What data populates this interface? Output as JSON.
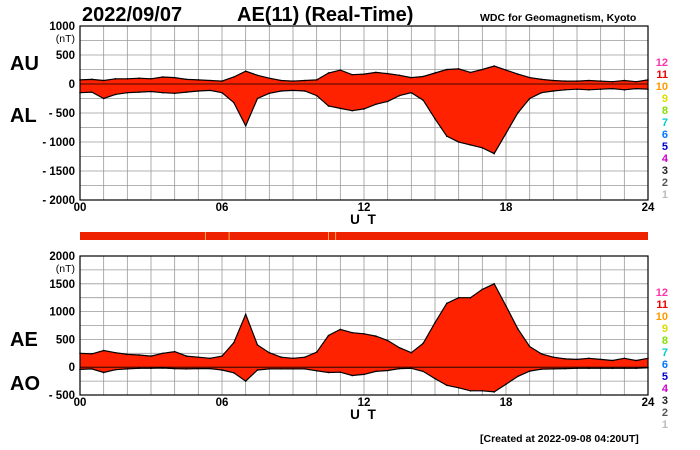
{
  "header": {
    "date": "2022/09/07",
    "title": "AE(11) (Real-Time)",
    "source": "WDC for Geomagnetism, Kyoto"
  },
  "footer": {
    "created": "[Created at 2022-09-08 04:20UT]"
  },
  "colors": {
    "fill": "#ff2200",
    "outline": "#000000",
    "grid": "#9a9a9a",
    "bar": "#ee2200"
  },
  "chart_data": [
    {
      "type": "area",
      "name": "au-al-panel",
      "xlabel": "U T",
      "ylabel": "(nT)",
      "xlim": [
        0,
        24
      ],
      "ylim": [
        -2000,
        1000
      ],
      "x_ticks": [
        "00",
        "06",
        "12",
        "18",
        "24"
      ],
      "y_ticks": [
        "1000",
        "500",
        "0",
        "- 500",
        "- 1000",
        "- 1500",
        "- 2000"
      ],
      "y_tick_values": [
        1000,
        500,
        0,
        -500,
        -1000,
        -1500,
        -2000
      ],
      "grid": true,
      "series": [
        {
          "name": "AU",
          "x": [
            0,
            0.5,
            1,
            1.5,
            2,
            2.5,
            3,
            3.5,
            4,
            4.5,
            5,
            5.5,
            6,
            6.5,
            7,
            7.5,
            8,
            8.5,
            9,
            9.5,
            10,
            10.5,
            11,
            11.5,
            12,
            12.5,
            13,
            13.5,
            14,
            14.5,
            15,
            15.5,
            16,
            16.5,
            17,
            17.5,
            18,
            18.5,
            19,
            19.5,
            20,
            20.5,
            21,
            21.5,
            22,
            22.5,
            23,
            23.5,
            24
          ],
          "values": [
            70,
            80,
            60,
            90,
            90,
            100,
            90,
            120,
            110,
            80,
            70,
            60,
            50,
            120,
            220,
            150,
            100,
            60,
            50,
            60,
            70,
            190,
            240,
            160,
            170,
            200,
            180,
            150,
            110,
            130,
            190,
            250,
            260,
            200,
            250,
            310,
            240,
            170,
            110,
            80,
            60,
            50,
            50,
            60,
            50,
            40,
            60,
            40,
            70
          ]
        },
        {
          "name": "AL",
          "x": [
            0,
            0.5,
            1,
            1.5,
            2,
            2.5,
            3,
            3.5,
            4,
            4.5,
            5,
            5.5,
            6,
            6.5,
            7,
            7.5,
            8,
            8.5,
            9,
            9.5,
            10,
            10.5,
            11,
            11.5,
            12,
            12.5,
            13,
            13.5,
            14,
            14.5,
            15,
            15.5,
            16,
            16.5,
            17,
            17.5,
            18,
            18.5,
            19,
            19.5,
            20,
            20.5,
            21,
            21.5,
            22,
            22.5,
            23,
            23.5,
            24
          ],
          "values": [
            -150,
            -140,
            -250,
            -180,
            -150,
            -140,
            -130,
            -150,
            -160,
            -140,
            -120,
            -110,
            -150,
            -320,
            -720,
            -250,
            -160,
            -120,
            -110,
            -120,
            -200,
            -380,
            -420,
            -460,
            -430,
            -350,
            -300,
            -200,
            -150,
            -280,
            -600,
            -900,
            -1000,
            -1050,
            -1100,
            -1200,
            -850,
            -500,
            -250,
            -150,
            -120,
            -100,
            -90,
            -100,
            -90,
            -80,
            -100,
            -80,
            -90
          ]
        }
      ],
      "legend": [
        "AU",
        "AL"
      ],
      "station_counts": [
        "12",
        "11",
        "10",
        "9",
        "8",
        "7",
        "6",
        "5",
        "4",
        "3",
        "2",
        "1"
      ]
    },
    {
      "type": "area",
      "name": "ae-ao-panel",
      "xlabel": "U T",
      "ylabel": "(nT)",
      "xlim": [
        0,
        24
      ],
      "ylim": [
        -500,
        2000
      ],
      "x_ticks": [
        "00",
        "06",
        "12",
        "18",
        "24"
      ],
      "y_ticks": [
        "2000",
        "1500",
        "1000",
        "500",
        "0",
        "- 500"
      ],
      "y_tick_values": [
        2000,
        1500,
        1000,
        500,
        0,
        -500
      ],
      "grid": true,
      "series": [
        {
          "name": "AE",
          "x": [
            0,
            0.5,
            1,
            1.5,
            2,
            2.5,
            3,
            3.5,
            4,
            4.5,
            5,
            5.5,
            6,
            6.5,
            7,
            7.5,
            8,
            8.5,
            9,
            9.5,
            10,
            10.5,
            11,
            11.5,
            12,
            12.5,
            13,
            13.5,
            14,
            14.5,
            15,
            15.5,
            16,
            16.5,
            17,
            17.5,
            18,
            18.5,
            19,
            19.5,
            20,
            20.5,
            21,
            21.5,
            22,
            22.5,
            23,
            23.5,
            24
          ],
          "values": [
            250,
            240,
            300,
            260,
            230,
            220,
            200,
            250,
            280,
            200,
            180,
            160,
            200,
            440,
            950,
            400,
            260,
            180,
            160,
            180,
            270,
            570,
            680,
            620,
            600,
            560,
            480,
            350,
            260,
            430,
            800,
            1150,
            1250,
            1250,
            1400,
            1500,
            1100,
            690,
            370,
            240,
            180,
            150,
            140,
            160,
            140,
            120,
            160,
            120,
            160
          ]
        },
        {
          "name": "AO",
          "x": [
            0,
            0.5,
            1,
            1.5,
            2,
            2.5,
            3,
            3.5,
            4,
            4.5,
            5,
            5.5,
            6,
            6.5,
            7,
            7.5,
            8,
            8.5,
            9,
            9.5,
            10,
            10.5,
            11,
            11.5,
            12,
            12.5,
            13,
            13.5,
            14,
            14.5,
            15,
            15.5,
            16,
            16.5,
            17,
            17.5,
            18,
            18.5,
            19,
            19.5,
            20,
            20.5,
            21,
            21.5,
            22,
            22.5,
            23,
            23.5,
            24
          ],
          "values": [
            -40,
            -30,
            -95,
            -45,
            -30,
            -20,
            -20,
            -15,
            -25,
            -30,
            -25,
            -25,
            -50,
            -100,
            -250,
            -50,
            -30,
            -30,
            -30,
            -30,
            -65,
            -95,
            -90,
            -150,
            -130,
            -75,
            -60,
            -25,
            -20,
            -75,
            -205,
            -325,
            -370,
            -425,
            -425,
            -445,
            -305,
            -165,
            -70,
            -35,
            -30,
            -25,
            -20,
            -20,
            -20,
            -20,
            -20,
            -20,
            -10
          ]
        }
      ],
      "legend": [
        "AE",
        "AO"
      ],
      "station_counts": [
        "12",
        "11",
        "10",
        "9",
        "8",
        "7",
        "6",
        "5",
        "4",
        "3",
        "2",
        "1"
      ]
    }
  ]
}
